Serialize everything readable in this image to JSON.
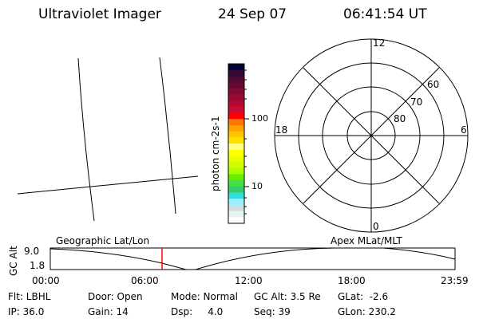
{
  "header": {
    "instrument": "Ultraviolet Imager",
    "date": "24 Sep 07",
    "time": "06:41:54 UT"
  },
  "colorbar": {
    "label": "photon cm-2s-1",
    "ticks": [
      "100",
      "10"
    ],
    "colors": [
      "#000033",
      "#330a33",
      "#4d0a33",
      "#660a33",
      "#800a33",
      "#990a33",
      "#b30a33",
      "#cc0a33",
      "#ff0000",
      "#ff7700",
      "#ff9f00",
      "#ffc400",
      "#ffe000",
      "#ffff80",
      "#ffff00",
      "#e8ff00",
      "#ccff00",
      "#aaff00",
      "#66ee00",
      "#44dd44",
      "#33cc66",
      "#33dddd",
      "#99eeff",
      "#d0e0e0",
      "#e8f4ee",
      "#ffffff"
    ]
  },
  "polar": {
    "mlt_labels": [
      "12",
      "6",
      "0",
      "18"
    ],
    "mlat_labels": [
      "60",
      "70",
      "80"
    ]
  },
  "altitude_plot": {
    "ylabel": "GC Alt",
    "yticks": [
      "9.0",
      "1.8"
    ],
    "xticks": [
      "00:00",
      "06:00",
      "12:00",
      "18:00",
      "23:59"
    ],
    "left_title": "Geographic Lat/Lon",
    "right_title": "Apex MLat/MLT",
    "current_marker_color": "#ff0000"
  },
  "info": [
    [
      "Flt: LBHL",
      "Door: Open",
      "Mode: Normal",
      "GC Alt: 3.5 Re",
      "GLat:  -2.6"
    ],
    [
      "IP: 36.0",
      "Gain: 14",
      "Dsp:     4.0",
      "Seq: 39",
      "GLon: 230.2"
    ]
  ]
}
